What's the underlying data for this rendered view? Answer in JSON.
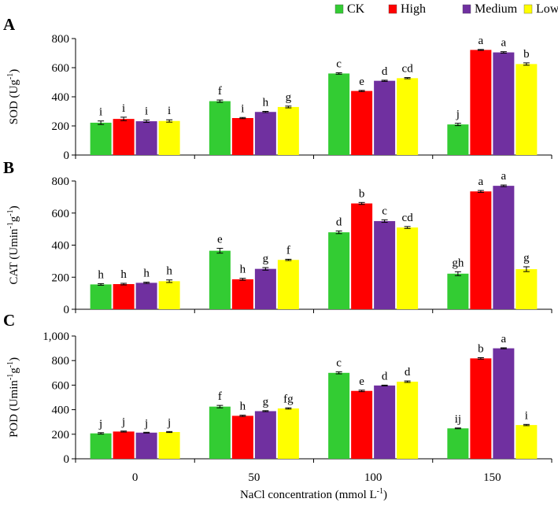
{
  "legend": [
    {
      "name": "CK",
      "color": "#33cc33"
    },
    {
      "name": "High",
      "color": "#ff0000"
    },
    {
      "name": "Medium",
      "color": "#7030a0"
    },
    {
      "name": "Low",
      "color": "#ffff00"
    }
  ],
  "xlabel": "NaCl concentration (mmol L",
  "xlabel_sup": "-1",
  "xlabel_end": ")",
  "chart_data": [
    {
      "type": "bar",
      "panel_label": "A",
      "ylabel": "SOD (Ug",
      "ylabel_sup": "-1",
      "ylabel_end": ")",
      "categories": [
        "0",
        "50",
        "100",
        "150"
      ],
      "ylim": [
        0,
        800
      ],
      "yticks": [
        0,
        200,
        400,
        600,
        800
      ],
      "ytick_labels": [
        "0",
        "200",
        "400",
        "600",
        "800"
      ],
      "series": [
        {
          "name": "CK",
          "values": [
            222,
            370,
            560,
            210
          ],
          "errors": [
            12,
            8,
            5,
            8
          ],
          "letters": [
            "i",
            "f",
            "c",
            "j"
          ]
        },
        {
          "name": "High",
          "values": [
            248,
            254,
            440,
            722
          ],
          "errors": [
            12,
            4,
            4,
            3
          ],
          "letters": [
            "i",
            "i",
            "e",
            "a"
          ]
        },
        {
          "name": "Medium",
          "values": [
            232,
            296,
            510,
            705
          ],
          "errors": [
            8,
            4,
            4,
            5
          ],
          "letters": [
            "i",
            "h",
            "d",
            "a"
          ]
        },
        {
          "name": "Low",
          "values": [
            234,
            330,
            528,
            625
          ],
          "errors": [
            8,
            6,
            4,
            8
          ],
          "letters": [
            "i",
            "g",
            "cd",
            "b"
          ]
        }
      ]
    },
    {
      "type": "bar",
      "panel_label": "B",
      "ylabel": "CAT (Umin",
      "ylabel_sup": "-1",
      "ylabel_mid": "g",
      "ylabel_sup2": "-1",
      "ylabel_end": ")",
      "categories": [
        "0",
        "50",
        "100",
        "150"
      ],
      "ylim": [
        0,
        800
      ],
      "yticks": [
        0,
        200,
        400,
        600,
        800
      ],
      "ytick_labels": [
        "0",
        "200",
        "400",
        "600",
        "800"
      ],
      "series": [
        {
          "name": "CK",
          "values": [
            155,
            365,
            480,
            222
          ],
          "errors": [
            5,
            15,
            8,
            12
          ],
          "letters": [
            "h",
            "e",
            "d",
            "gh"
          ]
        },
        {
          "name": "High",
          "values": [
            157,
            187,
            660,
            735
          ],
          "errors": [
            5,
            6,
            6,
            6
          ],
          "letters": [
            "h",
            "h",
            "b",
            "a"
          ]
        },
        {
          "name": "Medium",
          "values": [
            165,
            252,
            550,
            770
          ],
          "errors": [
            4,
            8,
            8,
            5
          ],
          "letters": [
            "h",
            "g",
            "c",
            "a"
          ]
        },
        {
          "name": "Low",
          "values": [
            175,
            308,
            510,
            250
          ],
          "errors": [
            8,
            4,
            6,
            15
          ],
          "letters": [
            "h",
            "f",
            "cd",
            "g"
          ]
        }
      ]
    },
    {
      "type": "bar",
      "panel_label": "C",
      "ylabel": "POD (Umin",
      "ylabel_sup": "-1",
      "ylabel_mid": "g",
      "ylabel_sup2": "-1",
      "ylabel_end": ")",
      "categories": [
        "0",
        "50",
        "100",
        "150"
      ],
      "ylim": [
        0,
        1000
      ],
      "yticks": [
        0,
        200,
        400,
        600,
        800,
        1000
      ],
      "ytick_labels": [
        "0",
        "200",
        "400",
        "600",
        "800",
        "1,000"
      ],
      "series": [
        {
          "name": "CK",
          "values": [
            207,
            425,
            700,
            248
          ],
          "errors": [
            6,
            10,
            8,
            3
          ],
          "letters": [
            "j",
            "f",
            "c",
            "ij"
          ]
        },
        {
          "name": "High",
          "values": [
            222,
            350,
            553,
            818
          ],
          "errors": [
            4,
            5,
            6,
            6
          ],
          "letters": [
            "j",
            "h",
            "e",
            "b"
          ]
        },
        {
          "name": "Medium",
          "values": [
            213,
            388,
            597,
            900
          ],
          "errors": [
            3,
            4,
            3,
            4
          ],
          "letters": [
            "j",
            "g",
            "d",
            "a"
          ]
        },
        {
          "name": "Low",
          "values": [
            218,
            410,
            628,
            275
          ],
          "errors": [
            4,
            5,
            6,
            5
          ],
          "letters": [
            "j",
            "fg",
            "d",
            "i"
          ]
        }
      ]
    }
  ]
}
